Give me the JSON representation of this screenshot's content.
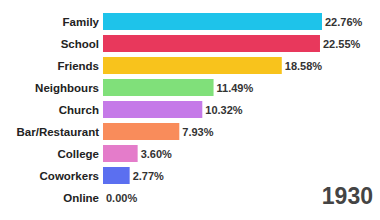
{
  "chart_data": {
    "type": "bar",
    "orientation": "horizontal",
    "categories": [
      "Family",
      "School",
      "Friends",
      "Neighbours",
      "Church",
      "Bar/Restaurant",
      "College",
      "Coworkers",
      "Online"
    ],
    "values": [
      22.76,
      22.55,
      18.58,
      11.49,
      10.32,
      7.93,
      3.6,
      2.77,
      0.0
    ],
    "value_labels": [
      "22.76%",
      "22.55%",
      "18.58%",
      "11.49%",
      "10.32%",
      "7.93%",
      "3.60%",
      "2.77%",
      "0.00%"
    ],
    "colors": [
      "#1ec3ea",
      "#e8385c",
      "#f8c31c",
      "#80e07a",
      "#c57ae8",
      "#f98c5b",
      "#e47cca",
      "#5b6ff0",
      "#9aa4b0"
    ],
    "xlim": [
      0,
      22.76
    ],
    "data_labels": true,
    "tick_labels": "y",
    "annotations": [
      "1930"
    ]
  }
}
